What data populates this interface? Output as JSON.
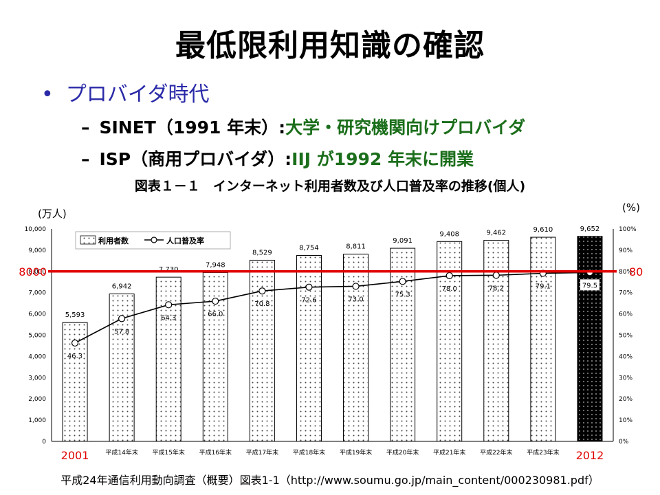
{
  "slide": {
    "title": "最低限利用知識の確認",
    "bullet": "プロバイダ時代",
    "sub1": {
      "prefix": "SINET（1991 年末）:",
      "rest": "大学・研究機関向けプロバイダ"
    },
    "sub2": {
      "prefix": "ISP（商用プロバイダ）:",
      "rest": "IIJ が1992 年末に開業"
    },
    "footer": "平成24年通信利用動向調査（概要）図表1-1（http://www.soumu.go.jp/main_content/000230981.pdf）"
  },
  "colors": {
    "bullet": "#2a2aa8",
    "green": "#1b6e1b",
    "annotation": "#e00000"
  },
  "chart_data": {
    "type": "bar",
    "title": "図表１－１　インターネット利用者数及び人口普及率の推移(個人)",
    "categories": [
      "2001",
      "平成14年末",
      "平成15年末",
      "平成16年末",
      "平成17年末",
      "平成18年末",
      "平成19年末",
      "平成20年末",
      "平成21年末",
      "平成22年末",
      "平成23年末",
      "2012"
    ],
    "y_left": {
      "unit": "(万人)",
      "lim": [
        0,
        10000
      ],
      "ticks": [
        "0",
        "1,000",
        "2,000",
        "3,000",
        "4,000",
        "5,000",
        "6,000",
        "7,000",
        "8,000",
        "9,000",
        "10,000"
      ]
    },
    "y_right": {
      "unit": "(%)",
      "lim": [
        0,
        100
      ],
      "ticks": [
        "0%",
        "10%",
        "20%",
        "30%",
        "40%",
        "50%",
        "60%",
        "70%",
        "80%",
        "90%",
        "100%"
      ]
    },
    "series": [
      {
        "name": "利用者数",
        "type": "bar",
        "values": [
          5593,
          6942,
          7730,
          7948,
          8529,
          8754,
          8811,
          9091,
          9408,
          9462,
          9610,
          9652
        ],
        "labels": [
          "5,593",
          "6,942",
          "7,730",
          "7,948",
          "8,529",
          "8,754",
          "8,811",
          "9,091",
          "9,408",
          "9,462",
          "9,610",
          "9,652"
        ]
      },
      {
        "name": "人口普及率",
        "type": "line",
        "values": [
          46.3,
          57.8,
          64.3,
          66.0,
          70.8,
          72.6,
          73.0,
          75.3,
          78.0,
          78.2,
          79.1,
          79.5
        ],
        "labels": [
          "46.3",
          "57.8",
          "64.3",
          "66.0",
          "70.8",
          "72.6",
          "73.0",
          "75.3",
          "78.0",
          "78.2",
          "79.1",
          "79.5"
        ]
      }
    ],
    "legend": "top-left",
    "annotation": {
      "line_value": 8000,
      "left_label": "8000",
      "right_label": "80"
    },
    "grid": false
  }
}
